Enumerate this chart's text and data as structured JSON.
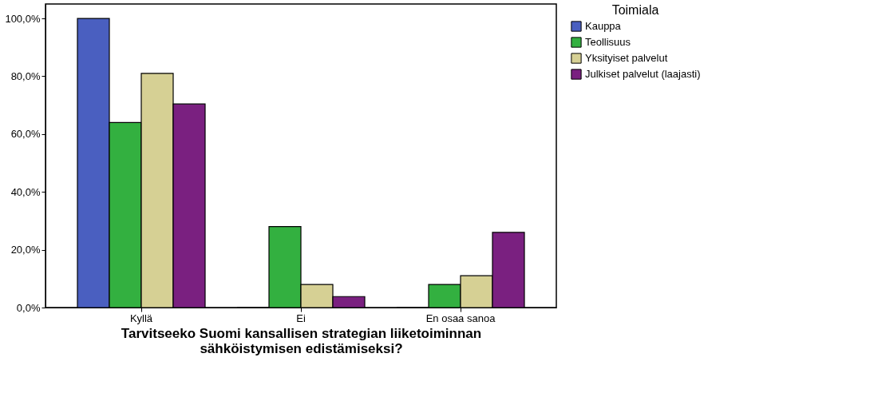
{
  "chart_data": {
    "type": "bar",
    "xlabel": "Tarvitseeko Suomi kansallisen strategian liiketoiminnan\nsähköistymisen edistämiseksi?",
    "legend_title": "Toimiala",
    "categories": [
      "Kyllä",
      "Ei",
      "En osaa sanoa"
    ],
    "series": [
      {
        "name": "Kauppa",
        "color": "#4a5fc0",
        "values": [
          100.0,
          0.0,
          0.0
        ]
      },
      {
        "name": "Teollisuus",
        "color": "#33b040",
        "values": [
          64.0,
          28.0,
          8.0
        ]
      },
      {
        "name": "Yksityiset palvelut",
        "color": "#d6d094",
        "values": [
          81.0,
          8.0,
          11.0
        ]
      },
      {
        "name": "Julkiset palvelut (laajasti)",
        "color": "#7a2080",
        "values": [
          70.4,
          3.8,
          26.0
        ]
      }
    ],
    "ylim": [
      0,
      105
    ],
    "yticks": [
      {
        "value": 0,
        "label": "0,0%"
      },
      {
        "value": 20,
        "label": "20,0%"
      },
      {
        "value": 40,
        "label": "40,0%"
      },
      {
        "value": 60,
        "label": "60,0%"
      },
      {
        "value": 80,
        "label": "80,0%"
      },
      {
        "value": 100,
        "label": "100,0%"
      }
    ],
    "grid": false,
    "legend": "top right"
  }
}
